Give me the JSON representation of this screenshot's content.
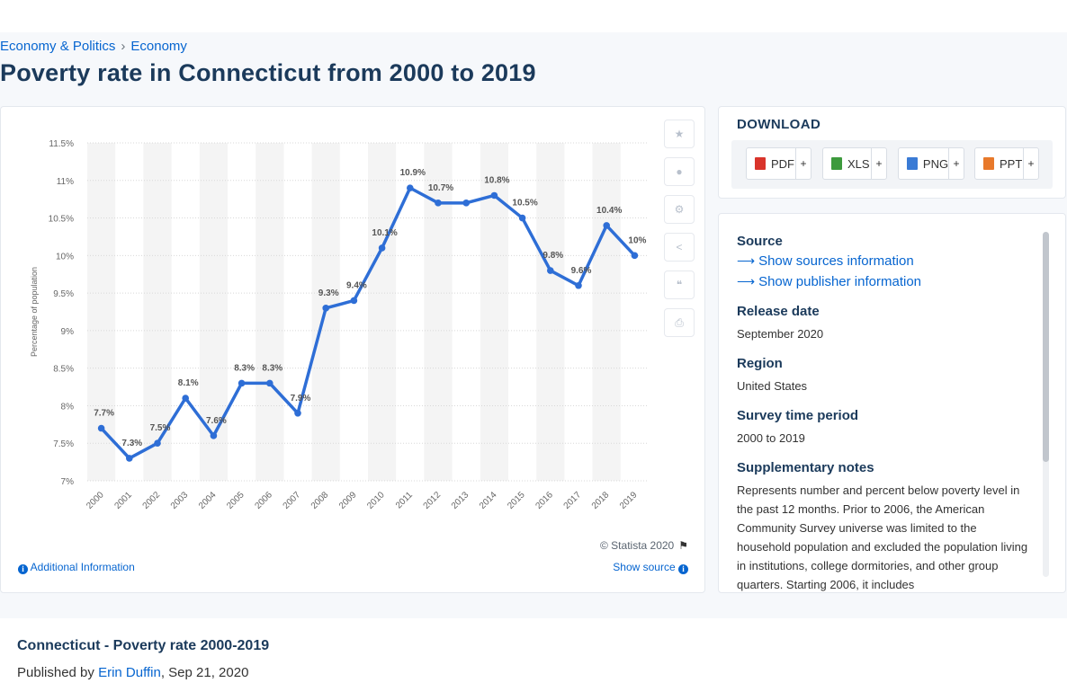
{
  "breadcrumb": {
    "item1": "Economy & Politics",
    "separator": "›",
    "item2": "Economy"
  },
  "page_title": "Poverty rate in Connecticut from 2000 to 2019",
  "chart": {
    "credit": "© Statista 2020",
    "additional_info": "Additional Information",
    "show_source": "Show source"
  },
  "chart_data": {
    "type": "line",
    "title": "",
    "xlabel": "",
    "ylabel": "Percentage of population",
    "categories": [
      "2000",
      "2001",
      "2002",
      "2003",
      "2004",
      "2005",
      "2006",
      "2007",
      "2008",
      "2009",
      "2010",
      "2011",
      "2012",
      "2013",
      "2014",
      "2015",
      "2016",
      "2017",
      "2018",
      "2019"
    ],
    "series": [
      {
        "values": [
          7.7,
          7.3,
          7.5,
          8.1,
          7.6,
          8.3,
          8.3,
          7.9,
          9.3,
          9.4,
          10.1,
          10.9,
          10.7,
          10.7,
          10.8,
          10.5,
          9.8,
          9.6,
          10.4,
          10.0
        ]
      }
    ],
    "data_labels": [
      "7.7%",
      "7.3%",
      "7.5%",
      "8.1%",
      "7.6%",
      "8.3%",
      "8.3%",
      "7.9%",
      "9.3%",
      "9.4%",
      "10.1%",
      "10.9%",
      "10.7%",
      "",
      "10.8%",
      "10.5%",
      "9.8%",
      "9.6%",
      "10.4%",
      "10%"
    ],
    "y_ticks": [
      7,
      7.5,
      8,
      8.5,
      9,
      9.5,
      10,
      10.5,
      11,
      11.5
    ],
    "y_tick_labels": [
      "7%",
      "7.5%",
      "8%",
      "8.5%",
      "9%",
      "9.5%",
      "10%",
      "10.5%",
      "11%",
      "11.5%"
    ],
    "ylim": [
      7,
      11.5
    ],
    "grid": true,
    "line_color": "#2e6ed6"
  },
  "download": {
    "title": "DOWNLOAD",
    "buttons": [
      {
        "label": "PDF",
        "color": "#d9342b"
      },
      {
        "label": "XLS",
        "color": "#3d9a3d"
      },
      {
        "label": "PNG",
        "color": "#3a7bd5"
      },
      {
        "label": "PPT",
        "color": "#e8792b"
      }
    ],
    "plus": "+"
  },
  "details": {
    "source_label": "Source",
    "show_sources": "Show sources information",
    "show_publisher": "Show publisher information",
    "release_label": "Release date",
    "release_value": "September 2020",
    "region_label": "Region",
    "region_value": "United States",
    "period_label": "Survey time period",
    "period_value": "2000 to 2019",
    "notes_label": "Supplementary notes",
    "notes_value": "Represents number and percent below poverty level in the past 12 months. Prior to 2006, the American Community Survey universe was limited to the household population and excluded the population living in institutions, college dormitories, and other group quarters. Starting 2006, it includes"
  },
  "bottom": {
    "title": "Connecticut - Poverty rate 2000-2019",
    "published_prefix": "Published by",
    "author": "Erin Duffin",
    "date": ", Sep 21, 2020"
  }
}
